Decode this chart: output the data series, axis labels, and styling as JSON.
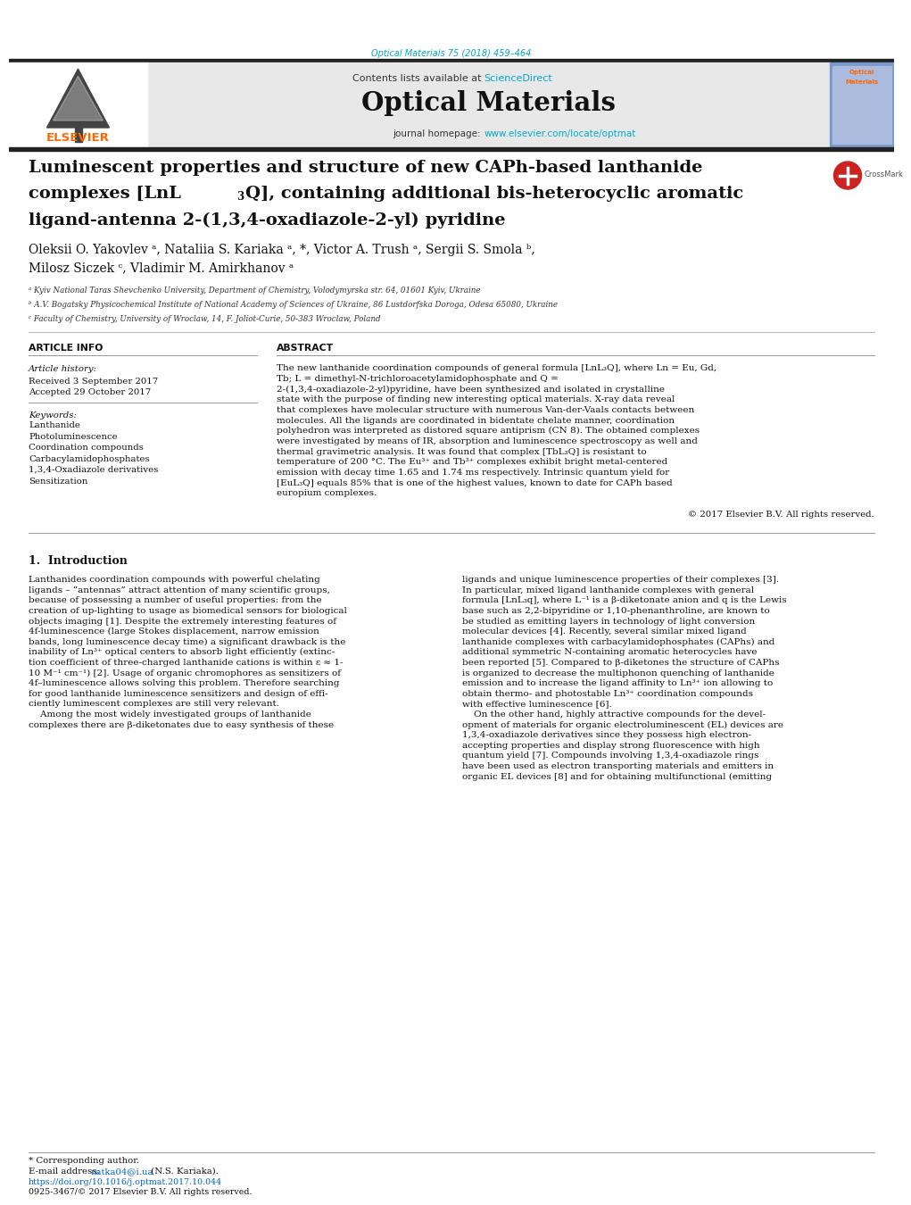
{
  "page_width": 9.92,
  "page_height": 13.23,
  "bg_color": "#ffffff",
  "journal_ref": "Optical Materials 75 (2018) 459–464",
  "journal_ref_color": "#00aacc",
  "header_bg": "#e8e8e8",
  "contents_text": "Contents lists available at ",
  "sciencedirect_text": "ScienceDirect",
  "sciencedirect_color": "#00aacc",
  "journal_title": "Optical Materials",
  "journal_homepage_prefix": "journal homepage: ",
  "journal_url": "www.elsevier.com/locate/optmat",
  "journal_url_color": "#00aacc",
  "thick_bar_color": "#222222",
  "title_line1": "Luminescent properties and structure of new CAPh-based lanthanide",
  "title_line2a": "complexes [LnL",
  "title_line2_sub": "3",
  "title_line2b": "Q], containing additional bis-heterocyclic aromatic",
  "title_line3": "ligand-antenna 2-(1,3,4-oxadiazole-2-yl) pyridine",
  "authors1": "Oleksii O. Yakovlev ᵃ, Nataliia S. Kariaka ᵃ, *, Victor A. Trush ᵃ, Sergii S. Smola ᵇ,",
  "authors2": "Milosz Siczek ᶜ, Vladimir M. Amirkhanov ᵃ",
  "affil_a": "ᵃ Kyiv National Taras Shevchenko University, Department of Chemistry, Volodymyrska str. 64, 01601 Kyiv, Ukraine",
  "affil_b": "ᵇ A.V. Bogatsky Physicochemical Institute of National Academy of Sciences of Ukraine, 86 Lustdorfska Doroga, Odesa 65080, Ukraine",
  "affil_c": "ᶜ Faculty of Chemistry, University of Wroclaw, 14, F. Joliot-Curie, 50-383 Wroclaw, Poland",
  "article_info_title": "ARTICLE INFO",
  "abstract_title": "ABSTRACT",
  "article_history_label": "Article history:",
  "received_text": "Received 3 September 2017",
  "accepted_text": "Accepted 29 October 2017",
  "keywords_label": "Keywords:",
  "keywords": [
    "Lanthanide",
    "Photoluminescence",
    "Coordination compounds",
    "Carbacylamidophosphates",
    "1,3,4-Oxadiazole derivatives",
    "Sensitization"
  ],
  "abstract_text": "The new lanthanide coordination compounds of general formula [LnL₃Q], where Ln = Eu, Gd, Tb; L = dimethyl-N-trichloroacetylamidophosphate and Q = 2-(1,3,4-oxadiazole-2-yl)pyridine, have been synthesized and isolated in crystalline state with the purpose of finding new interesting optical materials. X-ray data reveal that complexes have molecular structure with numerous Van-der-Vaals contacts between molecules. All the ligands are coordinated in bidentate chelate manner, coordination polyhedron was interpreted as distored square antiprism (CN 8). The obtained complexes were investigated by means of IR, absorption and luminescence spectroscopy as well and thermal gravimetric analysis. It was found that complex [TbL₃Q] is resistant to temperature of 200 °C. The Eu³⁺ and Tb³⁺ complexes exhibit bright metal-centered emission with decay time 1.65 and 1.74 ms respectively. Intrinsic quantum yield for [EuL₃Q] equals 85% that is one of the highest values, known to date for CAPh based europium complexes.",
  "copyright_text": "© 2017 Elsevier B.V. All rights reserved.",
  "section1_title": "1.  Introduction",
  "intro_col1_lines": [
    "Lanthanides coordination compounds with powerful chelating",
    "ligands – “antennas” attract attention of many scientific groups,",
    "because of possessing a number of useful properties: from the",
    "creation of up-lighting to usage as biomedical sensors for biological",
    "objects imaging [1]. Despite the extremely interesting features of",
    "4f-luminescence (large Stokes displacement, narrow emission",
    "bands, long luminescence decay time) a significant drawback is the",
    "inability of Ln³⁺ optical centers to absorb light efficiently (extinc-",
    "tion coefficient of three-charged lanthanide cations is within ε ≈ 1-",
    "10 M⁻¹ cm⁻¹) [2]. Usage of organic chromophores as sensitizers of",
    "4f–luminescence allows solving this problem. Therefore searching",
    "for good lanthanide luminescence sensitizers and design of effi-",
    "ciently luminescent complexes are still very relevant.",
    "    Among the most widely investigated groups of lanthanide",
    "complexes there are β-diketonates due to easy synthesis of these"
  ],
  "intro_col2_lines": [
    "ligands and unique luminescence properties of their complexes [3].",
    "In particular, mixed ligand lanthanide complexes with general",
    "formula [LnL₃q], where L⁻¹ is a β-diketonate anion and q is the Lewis",
    "base such as 2,2-bipyridine or 1,10-phenanthroline, are known to",
    "be studied as emitting layers in technology of light conversion",
    "molecular devices [4]. Recently, several similar mixed ligand",
    "lanthanide complexes with carbacylamidophosphates (CAPhs) and",
    "additional symmetric N-containing aromatic heterocycles have",
    "been reported [5]. Compared to β-diketones the structure of CAPhs",
    "is organized to decrease the multiphonon quenching of lanthanide",
    "emission and to increase the ligand affinity to Ln³⁺ ion allowing to",
    "obtain thermo- and photostable Ln³⁺ coordination compounds",
    "with effective luminescence [6].",
    "    On the other hand, highly attractive compounds for the devel-",
    "opment of materials for organic electroluminescent (EL) devices are",
    "1,3,4-oxadiazole derivatives since they possess high electron-",
    "accepting properties and display strong fluorescence with high",
    "quantum yield [7]. Compounds involving 1,3,4-oxadiazole rings",
    "have been used as electron transporting materials and emitters in",
    "organic EL devices [8] and for obtaining multifunctional (emitting"
  ],
  "footnote_star": "* Corresponding author.",
  "footnote_email_label": "E-mail address: ",
  "footnote_email": "natka04@i.ua",
  "footnote_email_color": "#0066cc",
  "footnote_email_suffix": " (N.S. Kariaka).",
  "doi_text": "https://doi.org/10.1016/j.optmat.2017.10.044",
  "doi_color": "#0066cc",
  "issn_text": "0925-3467/© 2017 Elsevier B.V. All rights reserved.",
  "elsevier_color": "#ff6600",
  "text_color": "#000000"
}
